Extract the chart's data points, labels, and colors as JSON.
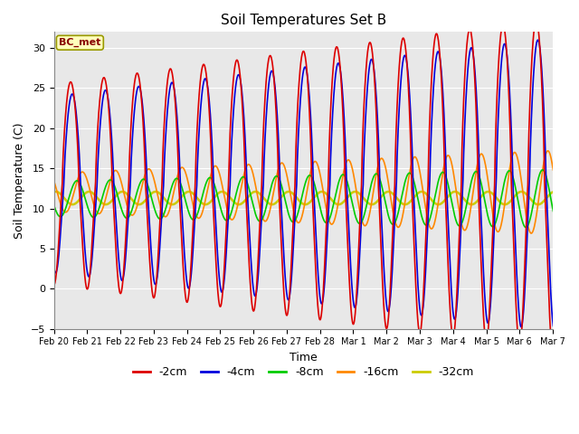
{
  "title": "Soil Temperatures Set B",
  "xlabel": "Time",
  "ylabel": "Soil Temperature (C)",
  "ylim": [
    -5,
    32
  ],
  "yticks": [
    -5,
    0,
    5,
    10,
    15,
    20,
    25,
    30
  ],
  "annotation": "BC_met",
  "series": {
    "-2cm": {
      "color": "#dd0000",
      "lw": 1.2
    },
    "-4cm": {
      "color": "#0000dd",
      "lw": 1.2
    },
    "-8cm": {
      "color": "#00cc00",
      "lw": 1.2
    },
    "-16cm": {
      "color": "#ff8800",
      "lw": 1.2
    },
    "-32cm": {
      "color": "#cccc00",
      "lw": 1.8
    }
  },
  "fig_bg": "#ffffff",
  "plot_bg": "#e8e8e8",
  "tick_labels": [
    "Feb 20",
    "Feb 21",
    "Feb 22",
    "Feb 23",
    "Feb 24",
    "Feb 25",
    "Feb 26",
    "Feb 27",
    "Feb 28",
    "Mar 1",
    "Mar 2",
    "Mar 3",
    "Mar 4",
    "Mar 5",
    "Mar 6",
    "Mar 7"
  ]
}
